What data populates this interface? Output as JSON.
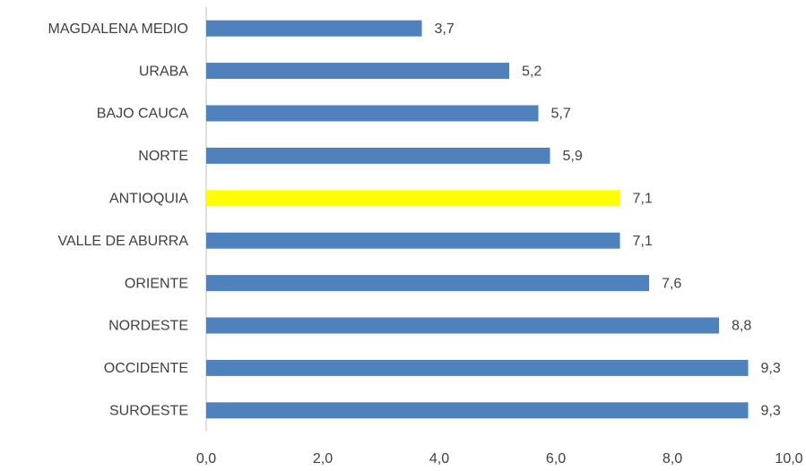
{
  "chart_data": {
    "type": "barh",
    "categories": [
      "MAGDALENA MEDIO",
      "URABA",
      "BAJO CAUCA",
      "NORTE",
      "ANTIOQUIA",
      "VALLE DE ABURRA",
      "ORIENTE",
      "NORDESTE",
      "OCCIDENTE",
      "SUROESTE"
    ],
    "values": [
      3.7,
      5.2,
      5.7,
      5.9,
      7.1,
      7.1,
      7.6,
      8.8,
      9.3,
      9.3
    ],
    "value_labels": [
      "3,7",
      "5,2",
      "5,7",
      "5,9",
      "7,1",
      "7,1",
      "7,6",
      "8,8",
      "9,3",
      "9,3"
    ],
    "colors": [
      "#4f81bd",
      "#4f81bd",
      "#4f81bd",
      "#4f81bd",
      "#ffff00",
      "#4f81bd",
      "#4f81bd",
      "#4f81bd",
      "#4f81bd",
      "#4f81bd"
    ],
    "xlim": [
      0,
      10
    ],
    "xticks": [
      {
        "value": 0,
        "label": "0,0"
      },
      {
        "value": 2,
        "label": "2,0"
      },
      {
        "value": 4,
        "label": "4,0"
      },
      {
        "value": 6,
        "label": "6,0"
      },
      {
        "value": 8,
        "label": "8,0"
      },
      {
        "value": 10,
        "label": "10,0"
      }
    ],
    "grid": false
  }
}
